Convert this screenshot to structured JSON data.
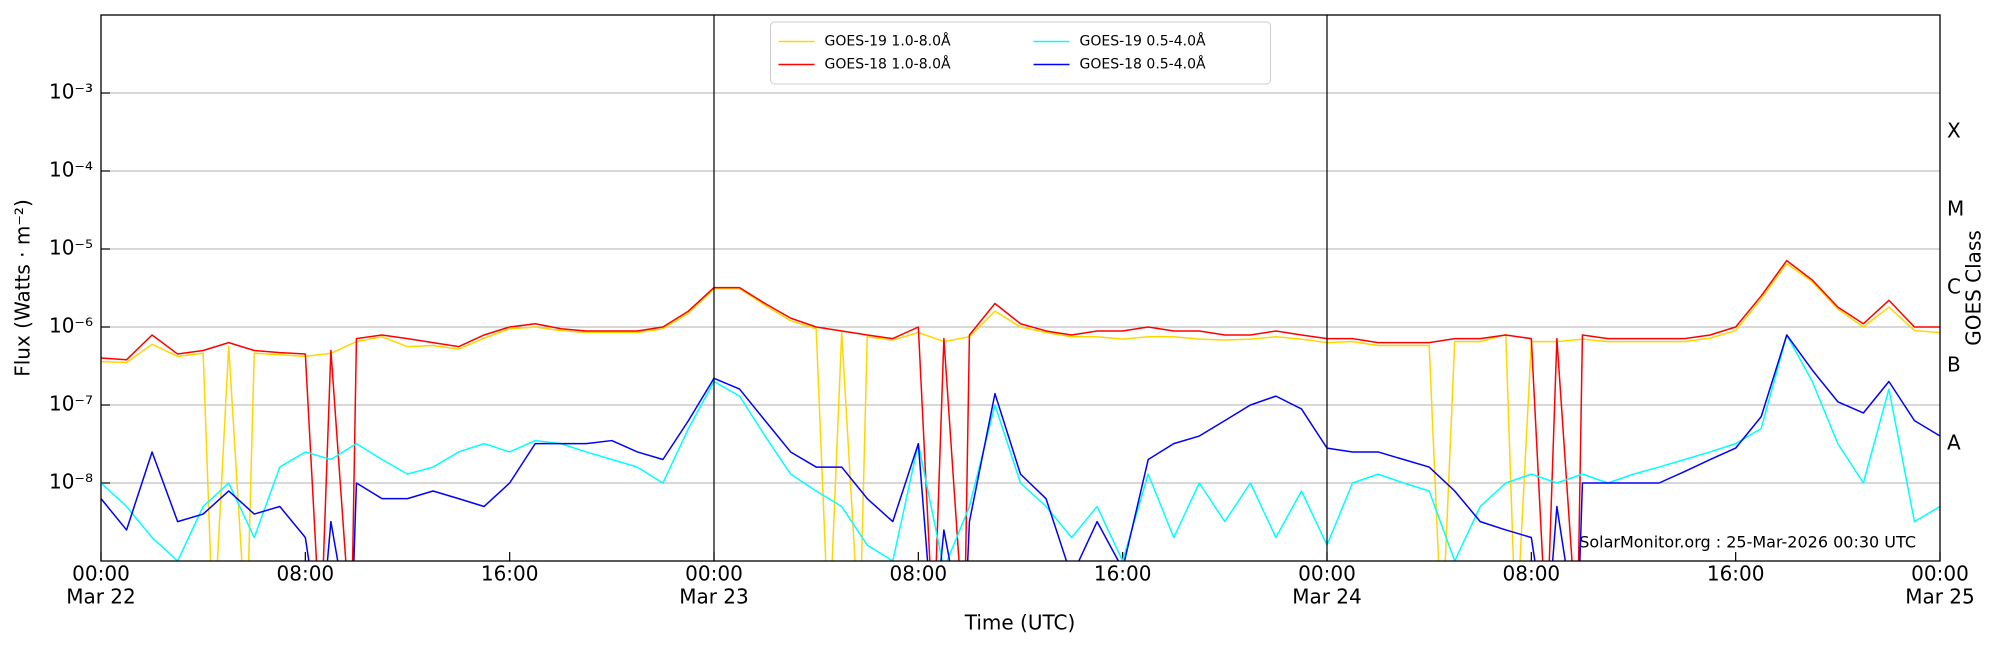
{
  "chart_data": {
    "type": "line",
    "yscale": "log",
    "grid": true,
    "legend_loc": "upper center",
    "xlabel": "Time (UTC)",
    "ylabel": "Flux (Watts · m⁻²)",
    "y2label": "GOES Class",
    "annotation": "SolarMonitor.org : 25-Mar-2026 00:30 UTC",
    "xlim": [
      0,
      72
    ],
    "ylim": [
      1e-09,
      0.01
    ],
    "y2lim": [
      1e-09,
      0.01
    ],
    "xticks": [
      {
        "value": 0,
        "label": "00:00",
        "date": "Mar 22"
      },
      {
        "value": 8,
        "label": "08:00"
      },
      {
        "value": 16,
        "label": "16:00"
      },
      {
        "value": 24,
        "label": "00:00",
        "date": "Mar 23"
      },
      {
        "value": 32,
        "label": "08:00"
      },
      {
        "value": 40,
        "label": "16:00"
      },
      {
        "value": 48,
        "label": "00:00",
        "date": "Mar 24"
      },
      {
        "value": 56,
        "label": "08:00"
      },
      {
        "value": 64,
        "label": "16:00"
      },
      {
        "value": 72,
        "label": "00:00",
        "date": "Mar 25"
      }
    ],
    "yticks": [
      {
        "value": 1e-08,
        "label": "10⁻⁸"
      },
      {
        "value": 1e-07,
        "label": "10⁻⁷"
      },
      {
        "value": 1e-06,
        "label": "10⁻⁶"
      },
      {
        "value": 1e-05,
        "label": "10⁻⁵"
      },
      {
        "value": 0.0001,
        "label": "10⁻⁴"
      },
      {
        "value": 0.001,
        "label": "10⁻³"
      }
    ],
    "y2ticks": [
      {
        "value": 3.16e-08,
        "label": "A"
      },
      {
        "value": 3.16e-07,
        "label": "B"
      },
      {
        "value": 3.16e-06,
        "label": "C"
      },
      {
        "value": 3.16e-05,
        "label": "M"
      },
      {
        "value": 0.000316,
        "label": "X"
      }
    ],
    "day_lines": [
      24,
      48
    ],
    "series": [
      {
        "name": "GOES-19 1.0-8.0Å",
        "color": "#ffd700",
        "x": [
          0,
          1,
          2,
          3,
          4,
          4.4,
          5,
          5.7,
          6,
          7,
          8,
          9,
          10,
          11,
          12,
          13,
          14,
          15,
          16,
          17,
          18,
          19,
          20,
          21,
          22,
          23,
          24,
          25,
          26,
          27,
          28,
          28.5,
          29,
          29.7,
          30,
          31,
          32,
          33,
          34,
          35,
          36,
          37,
          38,
          39,
          40,
          41,
          42,
          43,
          44,
          45,
          46,
          47,
          48,
          49,
          50,
          51,
          52,
          52.5,
          53,
          54,
          55,
          55.4,
          56,
          57,
          58,
          59,
          60,
          61,
          62,
          63,
          64,
          65,
          66,
          67,
          68,
          69,
          70,
          71,
          72
        ],
        "values": [
          3.6e-07,
          3.5e-07,
          6e-07,
          4.2e-07,
          4.6e-07,
          1e-10,
          5.6e-07,
          1e-10,
          4.6e-07,
          4.4e-07,
          4.2e-07,
          4.6e-07,
          6.5e-07,
          7.5e-07,
          5.6e-07,
          5.8e-07,
          5.2e-07,
          7.2e-07,
          9.5e-07,
          1e-06,
          9e-07,
          8.5e-07,
          8.5e-07,
          8.5e-07,
          9.5e-07,
          1.5e-06,
          3.1e-06,
          3.1e-06,
          1.9e-06,
          1.2e-06,
          9.5e-07,
          1e-10,
          8.5e-07,
          1e-10,
          7.5e-07,
          6.8e-07,
          8.5e-07,
          6.5e-07,
          7.5e-07,
          1.6e-06,
          1e-06,
          8.5e-07,
          7.5e-07,
          7.5e-07,
          7e-07,
          7.5e-07,
          7.5e-07,
          7e-07,
          6.8e-07,
          7e-07,
          7.5e-07,
          7e-07,
          6.3e-07,
          6.5e-07,
          5.8e-07,
          5.8e-07,
          5.8e-07,
          1e-10,
          6.5e-07,
          6.5e-07,
          8e-07,
          1e-10,
          6.5e-07,
          6.5e-07,
          7e-07,
          6.5e-07,
          6.5e-07,
          6.5e-07,
          6.5e-07,
          7.2e-07,
          9e-07,
          2.3e-06,
          6.5e-06,
          3.8e-06,
          1.7e-06,
          1e-06,
          1.8e-06,
          9e-07,
          8.5e-07
        ]
      },
      {
        "name": "GOES-18 1.0-8.0Å",
        "color": "#ff0000",
        "x": [
          0,
          1,
          2,
          3,
          4,
          5,
          6,
          7,
          8,
          8.6,
          9,
          9.8,
          10,
          11,
          12,
          13,
          14,
          15,
          16,
          17,
          18,
          19,
          20,
          21,
          22,
          23,
          24,
          25,
          26,
          27,
          28,
          29,
          30,
          31,
          32,
          32.6,
          33,
          33.8,
          34,
          35,
          36,
          37,
          38,
          39,
          40,
          41,
          42,
          43,
          44,
          45,
          46,
          47,
          48,
          49,
          50,
          51,
          52,
          53,
          54,
          55,
          56,
          56.6,
          57,
          57.8,
          58,
          59,
          60,
          61,
          62,
          63,
          64,
          65,
          66,
          67,
          68,
          69,
          70,
          71,
          72
        ],
        "values": [
          4e-07,
          3.8e-07,
          7.9e-07,
          4.5e-07,
          5e-07,
          6.3e-07,
          5e-07,
          4.7e-07,
          4.5e-07,
          1e-10,
          5e-07,
          1e-10,
          7.1e-07,
          7.9e-07,
          7.1e-07,
          6.3e-07,
          5.6e-07,
          7.9e-07,
          1e-06,
          1.1e-06,
          9.5e-07,
          8.9e-07,
          8.9e-07,
          8.9e-07,
          1e-06,
          1.6e-06,
          3.2e-06,
          3.2e-06,
          2e-06,
          1.3e-06,
          1e-06,
          8.9e-07,
          7.9e-07,
          7.1e-07,
          1e-06,
          1e-10,
          7.1e-07,
          1e-10,
          7.9e-07,
          2e-06,
          1.1e-06,
          8.9e-07,
          7.9e-07,
          8.9e-07,
          8.9e-07,
          1e-06,
          8.9e-07,
          8.9e-07,
          7.9e-07,
          7.9e-07,
          8.9e-07,
          7.9e-07,
          7.1e-07,
          7.1e-07,
          6.3e-07,
          6.3e-07,
          6.3e-07,
          7.1e-07,
          7.1e-07,
          7.9e-07,
          7.1e-07,
          1e-10,
          7.1e-07,
          1e-10,
          7.9e-07,
          7.1e-07,
          7.1e-07,
          7.1e-07,
          7.1e-07,
          7.9e-07,
          1e-06,
          2.5e-06,
          7.1e-06,
          4e-06,
          1.8e-06,
          1.1e-06,
          2.2e-06,
          1e-06,
          1e-06
        ]
      },
      {
        "name": "GOES-19 0.5-4.0Å",
        "color": "#00ffff",
        "x": [
          0,
          1,
          2,
          3,
          4,
          5,
          6,
          7,
          8,
          9,
          10,
          11,
          12,
          13,
          14,
          15,
          16,
          17,
          18,
          19,
          20,
          21,
          22,
          23,
          24,
          25,
          26,
          27,
          28,
          29,
          30,
          31,
          32,
          33,
          34,
          35,
          36,
          37,
          38,
          39,
          40,
          41,
          42,
          43,
          44,
          45,
          46,
          47,
          48,
          49,
          50,
          51,
          52,
          53,
          54,
          55,
          56,
          57,
          58,
          59,
          60,
          61,
          62,
          63,
          64,
          65,
          66,
          67,
          68,
          69,
          70,
          71,
          72
        ],
        "values": [
          1e-08,
          5e-09,
          2e-09,
          1e-09,
          5e-09,
          1e-08,
          2e-09,
          1.6e-08,
          2.5e-08,
          2e-08,
          3.2e-08,
          2e-08,
          1.3e-08,
          1.6e-08,
          2.5e-08,
          3.2e-08,
          2.5e-08,
          3.5e-08,
          3.2e-08,
          2.5e-08,
          2e-08,
          1.6e-08,
          1e-08,
          5e-08,
          2e-07,
          1.3e-07,
          4e-08,
          1.3e-08,
          7.9e-09,
          5e-09,
          1.6e-09,
          1e-09,
          3.2e-08,
          7.9e-10,
          5e-09,
          1e-07,
          1e-08,
          5e-09,
          2e-09,
          5e-09,
          1e-09,
          1.3e-08,
          2e-09,
          1e-08,
          3.2e-09,
          1e-08,
          2e-09,
          7.9e-09,
          1.6e-09,
          1e-08,
          1.3e-08,
          1e-08,
          7.9e-09,
          1e-09,
          5e-09,
          1e-08,
          1.3e-08,
          1e-08,
          1.3e-08,
          1e-08,
          1.3e-08,
          1.6e-08,
          2e-08,
          2.5e-08,
          3.2e-08,
          5e-08,
          7.9e-07,
          2e-07,
          3.2e-08,
          1e-08,
          1.6e-07,
          3.2e-09,
          5e-09
        ]
      },
      {
        "name": "GOES-18 0.5-4.0Å",
        "color": "#0000ff",
        "x": [
          0,
          1,
          2,
          3,
          4,
          5,
          6,
          7,
          8,
          8.6,
          9,
          9.8,
          10,
          11,
          12,
          13,
          14,
          15,
          16,
          17,
          18,
          19,
          20,
          21,
          22,
          23,
          24,
          25,
          26,
          27,
          28,
          29,
          30,
          31,
          32,
          32.6,
          33,
          33.8,
          34,
          35,
          36,
          37,
          38,
          39,
          40,
          41,
          42,
          43,
          44,
          45,
          46,
          47,
          48,
          49,
          50,
          51,
          52,
          53,
          54,
          55,
          56,
          56.6,
          57,
          57.8,
          58,
          59,
          60,
          61,
          62,
          63,
          64,
          65,
          66,
          67,
          68,
          69,
          70,
          71,
          72
        ],
        "values": [
          6.3e-09,
          2.5e-09,
          2.5e-08,
          3.2e-09,
          4e-09,
          7.9e-09,
          4e-09,
          5e-09,
          2e-09,
          1e-10,
          3.2e-09,
          1e-10,
          1e-08,
          6.3e-09,
          6.3e-09,
          7.9e-09,
          6.3e-09,
          5e-09,
          1e-08,
          3.2e-08,
          3.2e-08,
          3.2e-08,
          3.5e-08,
          2.5e-08,
          2e-08,
          6.3e-08,
          2.2e-07,
          1.6e-07,
          6.3e-08,
          2.5e-08,
          1.6e-08,
          1.6e-08,
          6.3e-09,
          3.2e-09,
          3.2e-08,
          1e-10,
          2.5e-09,
          1e-10,
          3.2e-09,
          1.4e-07,
          1.3e-08,
          6.3e-09,
          6.3e-10,
          3.2e-09,
          7.9e-10,
          2e-08,
          3.2e-08,
          4e-08,
          6.3e-08,
          1e-07,
          1.3e-07,
          8.9e-08,
          2.8e-08,
          2.5e-08,
          2.5e-08,
          2e-08,
          1.6e-08,
          7.9e-09,
          3.2e-09,
          2.5e-09,
          2e-09,
          1e-10,
          5e-09,
          1e-10,
          1e-08,
          1e-08,
          1e-08,
          1e-08,
          1.4e-08,
          2e-08,
          2.8e-08,
          7.1e-08,
          7.9e-07,
          2.8e-07,
          1.1e-07,
          7.9e-08,
          2e-07,
          6.3e-08,
          4e-08
        ]
      }
    ]
  }
}
